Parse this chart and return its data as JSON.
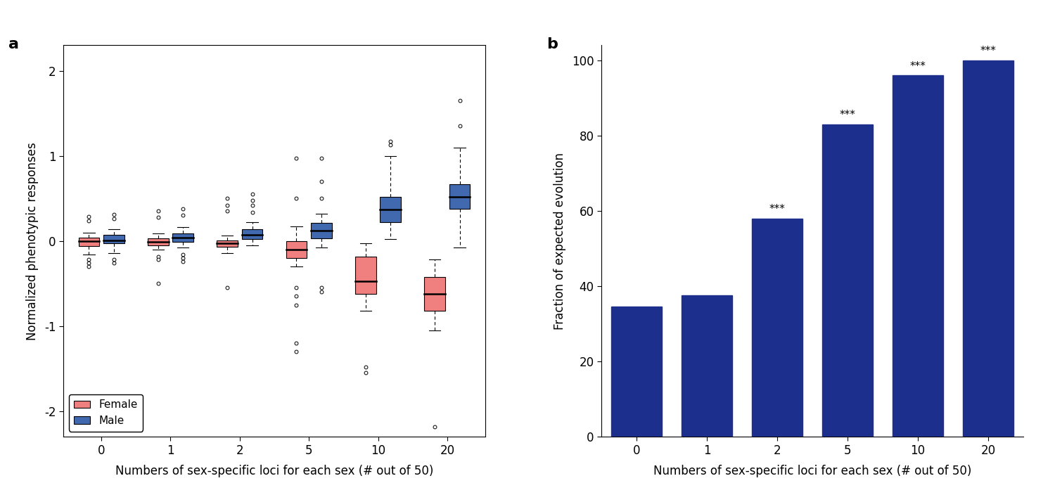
{
  "panel_a_label": "a",
  "panel_b_label": "b",
  "categories": [
    0,
    1,
    2,
    5,
    10,
    20
  ],
  "cat_labels": [
    "0",
    "1",
    "2",
    "5",
    "10",
    "20"
  ],
  "xlabel": "Numbers of sex-specific loci for each sex (# out of 50)",
  "ylabel_a": "Normalized phenotypic responses",
  "ylabel_b": "Fraction of expected evolution",
  "female_color": "#F08080",
  "male_color": "#4169B0",
  "bar_color": "#1C2F8C",
  "bar_values": [
    34.5,
    37.5,
    58.0,
    83.0,
    96.0,
    100.0
  ],
  "significance": [
    "",
    "",
    "***",
    "***",
    "***",
    "***"
  ],
  "ylim_a": [
    -2.3,
    2.3
  ],
  "ylim_b": [
    0,
    104
  ],
  "yticks_a": [
    -2,
    -1,
    0,
    1,
    2
  ],
  "yticks_b": [
    0,
    20,
    40,
    60,
    80,
    100
  ],
  "female_boxes": {
    "0": {
      "q1": -0.06,
      "median": 0.0,
      "q3": 0.04,
      "whislo": -0.16,
      "whishi": 0.1,
      "fliers_lo": [
        -0.22,
        -0.26,
        -0.3
      ],
      "fliers_hi": [
        0.24,
        0.29
      ]
    },
    "1": {
      "q1": -0.05,
      "median": -0.01,
      "q3": 0.03,
      "whislo": -0.1,
      "whishi": 0.09,
      "fliers_lo": [
        -0.18,
        -0.22,
        -0.5
      ],
      "fliers_hi": [
        0.28,
        0.35
      ]
    },
    "2": {
      "q1": -0.07,
      "median": -0.03,
      "q3": 0.01,
      "whislo": -0.14,
      "whishi": 0.06,
      "fliers_lo": [
        -0.55
      ],
      "fliers_hi": [
        0.35,
        0.42,
        0.5
      ]
    },
    "5": {
      "q1": -0.2,
      "median": -0.1,
      "q3": 0.0,
      "whislo": -0.3,
      "whishi": 0.17,
      "fliers_lo": [
        -0.55,
        -0.65,
        -0.75,
        -1.2,
        -1.3
      ],
      "fliers_hi": [
        0.97,
        0.5
      ]
    },
    "10": {
      "q1": -0.62,
      "median": -0.47,
      "q3": -0.18,
      "whislo": -0.82,
      "whishi": -0.03,
      "fliers_lo": [
        -1.48,
        -1.55
      ],
      "fliers_hi": []
    },
    "20": {
      "q1": -0.82,
      "median": -0.62,
      "q3": -0.42,
      "whislo": -1.05,
      "whishi": -0.22,
      "fliers_lo": [
        -2.18
      ],
      "fliers_hi": []
    }
  },
  "male_boxes": {
    "0": {
      "q1": -0.03,
      "median": 0.01,
      "q3": 0.07,
      "whislo": -0.14,
      "whishi": 0.14,
      "fliers_lo": [
        -0.22,
        -0.26
      ],
      "fliers_hi": [
        0.26,
        0.31
      ]
    },
    "1": {
      "q1": -0.01,
      "median": 0.04,
      "q3": 0.09,
      "whislo": -0.08,
      "whishi": 0.16,
      "fliers_lo": [
        -0.16,
        -0.2,
        -0.24
      ],
      "fliers_hi": [
        0.3,
        0.38
      ]
    },
    "2": {
      "q1": 0.02,
      "median": 0.07,
      "q3": 0.14,
      "whislo": -0.05,
      "whishi": 0.22,
      "fliers_lo": [],
      "fliers_hi": [
        0.34,
        0.42,
        0.48,
        0.55
      ]
    },
    "5": {
      "q1": 0.03,
      "median": 0.12,
      "q3": 0.21,
      "whislo": -0.08,
      "whishi": 0.32,
      "fliers_lo": [
        -0.55,
        -0.6
      ],
      "fliers_hi": [
        0.97,
        0.7,
        0.5
      ]
    },
    "10": {
      "q1": 0.22,
      "median": 0.37,
      "q3": 0.52,
      "whislo": 0.02,
      "whishi": 1.0,
      "fliers_lo": [],
      "fliers_hi": [
        1.13,
        1.17
      ]
    },
    "20": {
      "q1": 0.38,
      "median": 0.52,
      "q3": 0.67,
      "whislo": -0.08,
      "whishi": 1.1,
      "fliers_lo": [],
      "fliers_hi": [
        1.35,
        1.65
      ]
    }
  }
}
